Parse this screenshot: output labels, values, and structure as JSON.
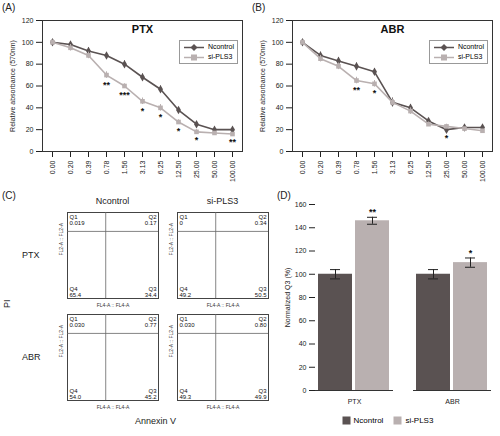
{
  "chart_data": [
    {
      "type": "line",
      "panel_label": "(A)",
      "title": "PTX",
      "y_label": "Relative absorbance (570nm)",
      "categories": [
        "0.00",
        "0.20",
        "0.39",
        "0.78",
        "1.56",
        "3.13",
        "6.25",
        "12.50",
        "25.00",
        "50.00",
        "100.00"
      ],
      "ylim": [
        0,
        120
      ],
      "yticks": [
        0,
        20,
        40,
        60,
        80,
        100,
        120
      ],
      "legend": "top-right",
      "series": [
        {
          "name": "Ncontrol",
          "color": "#5a5252",
          "marker": "diamond",
          "values": [
            100,
            98,
            92,
            88,
            80,
            68,
            57,
            38,
            25,
            20,
            20
          ],
          "errors": [
            2,
            2,
            3,
            2,
            3,
            3,
            3,
            2,
            2,
            1,
            1
          ]
        },
        {
          "name": "si-PLS3",
          "color": "#b9b0b0",
          "marker": "square",
          "values": [
            100,
            95,
            88,
            70,
            60,
            46,
            40,
            27,
            18,
            17,
            16
          ],
          "errors": [
            2,
            3,
            3,
            3,
            2,
            3,
            3,
            2,
            2,
            1,
            1
          ]
        }
      ],
      "annotations": [
        {
          "category": "0.78",
          "text": "**"
        },
        {
          "category": "1.56",
          "text": "***"
        },
        {
          "category": "3.13",
          "text": "*"
        },
        {
          "category": "6.25",
          "text": "*"
        },
        {
          "category": "12.50",
          "text": "*"
        },
        {
          "category": "25.00",
          "text": "*"
        },
        {
          "category": "100.00",
          "text": "**"
        }
      ]
    },
    {
      "type": "line",
      "panel_label": "(B)",
      "title": "ABR",
      "y_label": "Relative absorbance (570nm)",
      "categories": [
        "0.00",
        "0.20",
        "0.39",
        "0.78",
        "1.56",
        "3.13",
        "6.25",
        "12.50",
        "25.00",
        "50.00",
        "100.00"
      ],
      "ylim": [
        0,
        120
      ],
      "yticks": [
        0,
        20,
        40,
        60,
        80,
        100,
        120
      ],
      "legend": "top-right",
      "series": [
        {
          "name": "Ncontrol",
          "color": "#5a5252",
          "marker": "diamond",
          "values": [
            100,
            88,
            83,
            78,
            73,
            45,
            40,
            28,
            20,
            22,
            22
          ],
          "errors": [
            2,
            3,
            3,
            3,
            3,
            4,
            3,
            2,
            2,
            1,
            1
          ]
        },
        {
          "name": "si-PLS3",
          "color": "#b9b0b0",
          "marker": "square",
          "values": [
            100,
            85,
            78,
            65,
            62,
            45,
            37,
            25,
            23,
            21,
            19
          ],
          "errors": [
            2,
            3,
            3,
            3,
            3,
            3,
            3,
            2,
            2,
            1,
            1
          ]
        }
      ],
      "annotations": [
        {
          "category": "0.78",
          "text": "**"
        },
        {
          "category": "1.56",
          "text": "*"
        },
        {
          "category": "25.00",
          "text": "*"
        }
      ]
    },
    {
      "type": "flow_cytometry",
      "panel_label": "(C)",
      "x_label": "Annexin V",
      "y_label": "PI",
      "panel_x_label": "FL4-A :: FL4-A",
      "panel_y_label": "FL2-A :: FL2-A",
      "columns": [
        "Ncontrol",
        "si-PLS3"
      ],
      "rows": [
        "PTX",
        "ABR"
      ],
      "panels": [
        {
          "row": "PTX",
          "column": "Ncontrol",
          "quadrants": [
            {
              "quadrant": "Q1",
              "value": 0.019
            },
            {
              "quadrant": "Q2",
              "value": 0.17
            },
            {
              "quadrant": "Q3",
              "value": 34.4
            },
            {
              "quadrant": "Q4",
              "value": 65.4
            }
          ]
        },
        {
          "row": "PTX",
          "column": "si-PLS3",
          "quadrants": [
            {
              "quadrant": "Q1",
              "value": 0
            },
            {
              "quadrant": "Q2",
              "value": 0.34
            },
            {
              "quadrant": "Q3",
              "value": 50.5
            },
            {
              "quadrant": "Q4",
              "value": 49.2
            }
          ]
        },
        {
          "row": "ABR",
          "column": "Ncontrol",
          "quadrants": [
            {
              "quadrant": "Q1",
              "value": 0.03,
              "label": "0.030"
            },
            {
              "quadrant": "Q2",
              "value": 0.77
            },
            {
              "quadrant": "Q3",
              "value": 45.2
            },
            {
              "quadrant": "Q4",
              "value": 54,
              "label": "54.0"
            }
          ]
        },
        {
          "row": "ABR",
          "column": "si-PLS3",
          "quadrants": [
            {
              "quadrant": "Q1",
              "value": 0.03,
              "label": "0.030"
            },
            {
              "quadrant": "Q2",
              "value": 0.8,
              "label": "0.80"
            },
            {
              "quadrant": "Q3",
              "value": 49.9
            },
            {
              "quadrant": "Q4",
              "value": 49.3
            }
          ]
        }
      ]
    },
    {
      "type": "bar",
      "panel_label": "(D)",
      "y_label": "Normalized Q3 (%)",
      "categories": [
        "PTX",
        "ABR"
      ],
      "ylim": [
        0,
        160
      ],
      "yticks": [
        0,
        20,
        40,
        60,
        80,
        100,
        120,
        140,
        160
      ],
      "legend": "bottom",
      "series": [
        {
          "name": "Ncontrol",
          "color": "#5a5252",
          "values": [
            100,
            100
          ],
          "errors": [
            4,
            4
          ]
        },
        {
          "name": "si-PLS3",
          "color": "#b9b0b0",
          "values": [
            146,
            110
          ],
          "errors": [
            3,
            4
          ]
        }
      ],
      "annotations": [
        {
          "category": "PTX",
          "series": "si-PLS3",
          "text": "**"
        },
        {
          "category": "ABR",
          "series": "si-PLS3",
          "text": "*"
        }
      ]
    }
  ]
}
